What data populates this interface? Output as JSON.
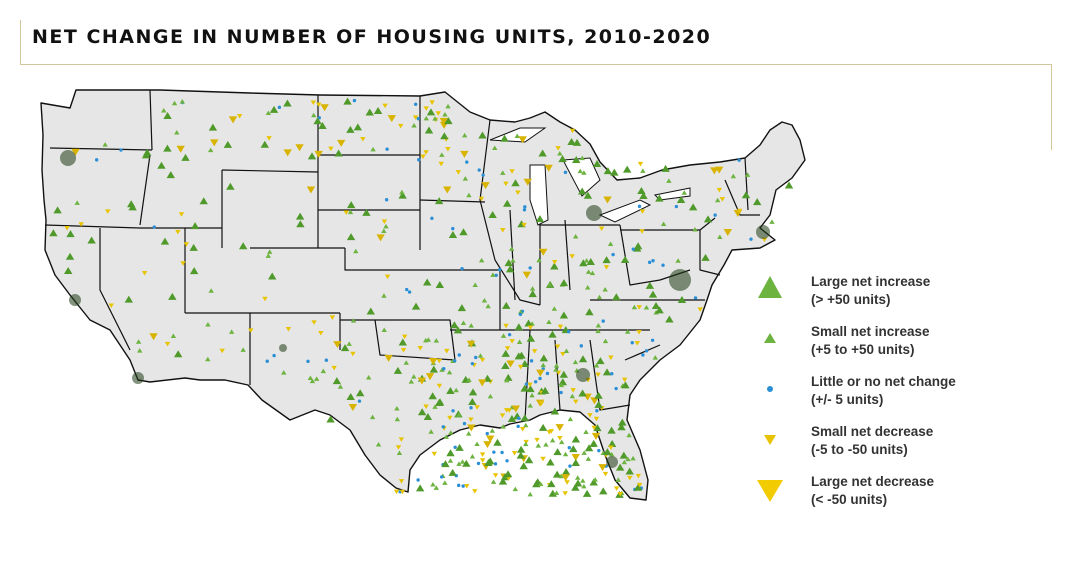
{
  "title": "NET CHANGE IN NUMBER OF HOUSING UNITS, 2010-2020",
  "colors": {
    "large_increase": "#6db33f",
    "small_increase": "#6db33f",
    "no_change": "#2b8fd6",
    "small_decrease": "#e8c400",
    "large_decrease": "#f2cc00",
    "land": "#e6e6e6",
    "border": "#111111",
    "frame": "#cfc79a"
  },
  "legend": [
    {
      "key": "large_increase",
      "symbol": "triangle-up-large",
      "line1": "Large net increase",
      "line2": "(> +50 units)"
    },
    {
      "key": "small_increase",
      "symbol": "triangle-up-small",
      "line1": "Small net increase",
      "line2": "(+5 to +50 units)"
    },
    {
      "key": "no_change",
      "symbol": "dot",
      "line1": "Little or no net change",
      "line2": "(+/- 5 units)"
    },
    {
      "key": "small_decrease",
      "symbol": "triangle-down-small",
      "line1": "Small net decrease",
      "line2": "(-5 to -50 units)"
    },
    {
      "key": "large_decrease",
      "symbol": "triangle-down-large",
      "line1": "Large net decrease",
      "line2": "(< -50 units)"
    }
  ]
}
